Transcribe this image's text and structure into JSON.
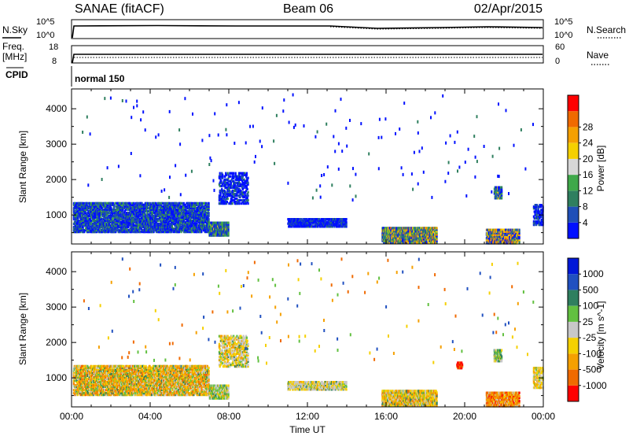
{
  "header": {
    "station": "SANAE (fitACF)",
    "beam": "Beam 06",
    "date": "02/Apr/2015"
  },
  "noise_panel": {
    "left_label": "N.Sky",
    "right_label": "N.Search",
    "left_ticks": [
      "10^5",
      "10^0"
    ],
    "right_ticks": [
      "10^5",
      "10^0"
    ]
  },
  "freq_panel": {
    "left_label_1": "Freq.",
    "left_label_2": "[MHz]",
    "right_label": "Nave",
    "left_ticks": [
      "18",
      "8"
    ],
    "right_ticks": [
      "60",
      "0"
    ]
  },
  "cpid": {
    "label": "CPID",
    "value": "normal 150"
  },
  "chart_data": [
    {
      "type": "heatmap",
      "title": "",
      "xlabel": "",
      "ylabel": "Slant Range [km]",
      "xlim_hours": [
        0,
        24
      ],
      "ylim_km": [
        180,
        4560
      ],
      "y_ticks": [
        "1000",
        "2000",
        "3000",
        "4000"
      ],
      "colorbar_label": "Power [dB]",
      "colorbar_ticks": [
        "4",
        "8",
        "12",
        "16",
        "20",
        "24",
        "28"
      ],
      "colors": [
        "#0010ff",
        "#1f4fb8",
        "#2f7f5f",
        "#3fa84a",
        "#d7d7d7",
        "#f5d000",
        "#f5a000",
        "#f06a00",
        "#ff0000"
      ],
      "blobs": [
        {
          "h0": 0.1,
          "h1": 7.0,
          "r0": 500,
          "r1": 1350,
          "density": 0.72,
          "weights": [
            5,
            3,
            2,
            1,
            0,
            0,
            0,
            0,
            0
          ]
        },
        {
          "h0": 7.0,
          "h1": 8.0,
          "r0": 400,
          "r1": 800,
          "density": 0.85,
          "weights": [
            3,
            3,
            3,
            2,
            0,
            1,
            0,
            0,
            0
          ]
        },
        {
          "h0": 7.5,
          "h1": 9.0,
          "r0": 1300,
          "r1": 2200,
          "density": 0.45,
          "weights": [
            6,
            2,
            1,
            0,
            0,
            0,
            0,
            0,
            0
          ]
        },
        {
          "h0": 11.0,
          "h1": 14.0,
          "r0": 650,
          "r1": 900,
          "density": 0.75,
          "weights": [
            6,
            2,
            1,
            0,
            0,
            0,
            0,
            0,
            0
          ]
        },
        {
          "h0": 15.8,
          "h1": 18.6,
          "r0": 200,
          "r1": 650,
          "density": 0.9,
          "weights": [
            2,
            2,
            2,
            3,
            0,
            2,
            2,
            1,
            0
          ]
        },
        {
          "h0": 21.1,
          "h1": 22.8,
          "r0": 180,
          "r1": 600,
          "density": 0.85,
          "weights": [
            2,
            2,
            1,
            1,
            0,
            2,
            3,
            1,
            0
          ]
        },
        {
          "h0": 21.5,
          "h1": 21.9,
          "r0": 1450,
          "r1": 1800,
          "density": 0.65,
          "weights": [
            3,
            2,
            2,
            2,
            0,
            1,
            0,
            0,
            0
          ]
        },
        {
          "h0": 23.5,
          "h1": 24.0,
          "r0": 700,
          "r1": 1300,
          "density": 0.55,
          "weights": [
            5,
            2,
            1,
            0,
            0,
            0,
            0,
            0,
            0
          ]
        }
      ]
    },
    {
      "type": "heatmap",
      "title": "",
      "xlabel": "Time UT",
      "ylabel": "Slant Range [km]",
      "xlim_hours": [
        0,
        24
      ],
      "ylim_km": [
        180,
        4560
      ],
      "x_ticks": [
        "00:00",
        "04:00",
        "08:00",
        "12:00",
        "16:00",
        "20:00",
        "00:00"
      ],
      "y_ticks": [
        "1000",
        "2000",
        "3000",
        "4000"
      ],
      "colorbar_label": "Velocity [m s^-1]",
      "colorbar_ticks": [
        "1000",
        "500",
        "100",
        "25",
        "-25",
        "-100",
        "-500",
        "-1000"
      ],
      "colors": [
        "#0018d8",
        "#2050c0",
        "#2f7f5f",
        "#62c040",
        "#c8c8c8",
        "#f5d000",
        "#f5a000",
        "#f06a00",
        "#ff0000"
      ],
      "blobs": [
        {
          "h0": 0.1,
          "h1": 7.0,
          "r0": 500,
          "r1": 1350,
          "density": 0.72,
          "weights": [
            0,
            0,
            1,
            2,
            2,
            3,
            5,
            2,
            0
          ]
        },
        {
          "h0": 7.0,
          "h1": 8.0,
          "r0": 400,
          "r1": 800,
          "density": 0.85,
          "weights": [
            0,
            0,
            1,
            4,
            3,
            2,
            1,
            0,
            0
          ]
        },
        {
          "h0": 7.5,
          "h1": 9.0,
          "r0": 1300,
          "r1": 2200,
          "density": 0.45,
          "weights": [
            0,
            0,
            1,
            1,
            3,
            3,
            2,
            0,
            0
          ]
        },
        {
          "h0": 11.0,
          "h1": 14.0,
          "r0": 650,
          "r1": 900,
          "density": 0.75,
          "weights": [
            0,
            0,
            1,
            1,
            5,
            3,
            1,
            0,
            0
          ]
        },
        {
          "h0": 15.8,
          "h1": 18.6,
          "r0": 200,
          "r1": 650,
          "density": 0.9,
          "weights": [
            0,
            0,
            1,
            1,
            2,
            5,
            3,
            1,
            0
          ]
        },
        {
          "h0": 19.6,
          "h1": 19.9,
          "r0": 1250,
          "r1": 1450,
          "density": 0.8,
          "weights": [
            0,
            0,
            0,
            0,
            0,
            0,
            0,
            3,
            3
          ]
        },
        {
          "h0": 21.1,
          "h1": 22.8,
          "r0": 180,
          "r1": 600,
          "density": 0.85,
          "weights": [
            0,
            0,
            0,
            0,
            1,
            1,
            4,
            3,
            1
          ]
        },
        {
          "h0": 21.5,
          "h1": 21.9,
          "r0": 1450,
          "r1": 1800,
          "density": 0.65,
          "weights": [
            0,
            0,
            2,
            3,
            2,
            2,
            0,
            0,
            0
          ]
        },
        {
          "h0": 23.5,
          "h1": 24.0,
          "r0": 700,
          "r1": 1300,
          "density": 0.55,
          "weights": [
            0,
            0,
            0,
            1,
            2,
            3,
            2,
            0,
            0
          ]
        }
      ]
    }
  ]
}
